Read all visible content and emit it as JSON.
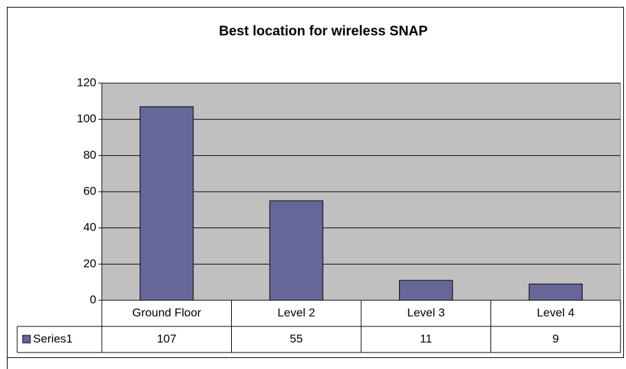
{
  "chart_data": {
    "type": "bar",
    "title": "Best location for wireless SNAP",
    "categories": [
      "Ground Floor",
      "Level 2",
      "Level 3",
      "Level 4"
    ],
    "series": [
      {
        "name": "Series1",
        "color": "#666699",
        "values": [
          107,
          55,
          11,
          9
        ]
      }
    ],
    "ylim": [
      0,
      120
    ],
    "yticks": [
      0,
      20,
      40,
      60,
      80,
      100,
      120
    ],
    "grid": true,
    "data_table": true
  }
}
